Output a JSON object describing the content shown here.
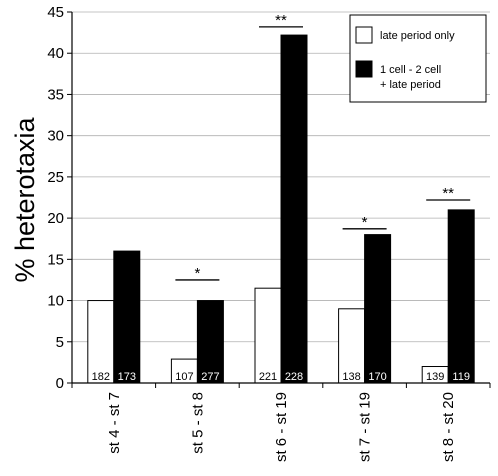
{
  "chart_data": {
    "type": "bar",
    "ylabel": "% heterotaxia",
    "ylim": [
      0,
      45
    ],
    "yticks": [
      0,
      5,
      10,
      15,
      20,
      25,
      30,
      35,
      40,
      45
    ],
    "categories": [
      "st 4 - st 7",
      "st 5 - st 8",
      "st 6 - st 19",
      "st 7 - st 19",
      "st 8 - st 20"
    ],
    "series": [
      {
        "name": "late period only",
        "color": "#ffffff",
        "values": [
          10,
          2.9,
          11.5,
          9,
          2
        ],
        "n": [
          "182",
          "107",
          "221",
          "138",
          "139"
        ]
      },
      {
        "name": "1 cell - 2 cell\n+ late period",
        "color": "#000000",
        "values": [
          16,
          10,
          42.2,
          18,
          21
        ],
        "n": [
          "173",
          "277",
          "228",
          "170",
          "119"
        ]
      }
    ],
    "significance": [
      {
        "category": 1,
        "label": "*",
        "y": 12.5
      },
      {
        "category": 2,
        "label": "**",
        "y": 43.2
      },
      {
        "category": 3,
        "label": "*",
        "y": 18.7
      },
      {
        "category": 4,
        "label": "**",
        "y": 22.2
      }
    ],
    "legend": {
      "placement": "top-right"
    }
  }
}
